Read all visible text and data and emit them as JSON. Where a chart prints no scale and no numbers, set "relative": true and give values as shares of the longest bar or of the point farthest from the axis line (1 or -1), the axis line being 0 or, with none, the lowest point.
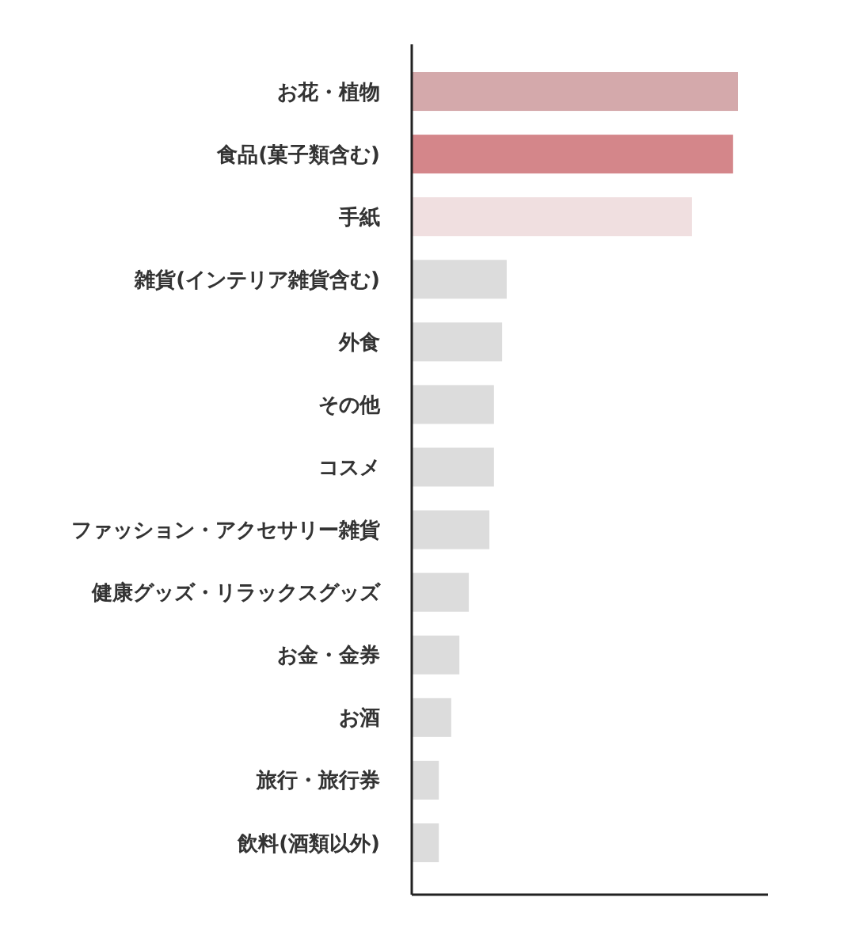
{
  "chart_data": {
    "type": "bar",
    "orientation": "horizontal",
    "relative": true,
    "categories": [
      "お花・植物",
      "食品(菓子類含む)",
      "手紙",
      "雑貨(インテリア雑貨含む)",
      "外食",
      "その他",
      "コスメ",
      "ファッション・アクセサリー雑貨",
      "健康グッズ・リラックスグッズ",
      "お金・金券",
      "お酒",
      "旅行・旅行券",
      "飲料(酒類以外)"
    ],
    "values": [
      1,
      0.985,
      0.859,
      0.291,
      0.277,
      0.252,
      0.252,
      0.238,
      0.175,
      0.146,
      0.121,
      0.083,
      0.083
    ],
    "colors": [
      "#d4a9ab",
      "#d4868a",
      "#f0dfe0",
      "#dcdcdc",
      "#dcdcdc",
      "#dcdcdc",
      "#dcdcdc",
      "#dcdcdc",
      "#dcdcdc",
      "#dcdcdc",
      "#dcdcdc",
      "#dcdcdc",
      "#dcdcdc"
    ]
  }
}
